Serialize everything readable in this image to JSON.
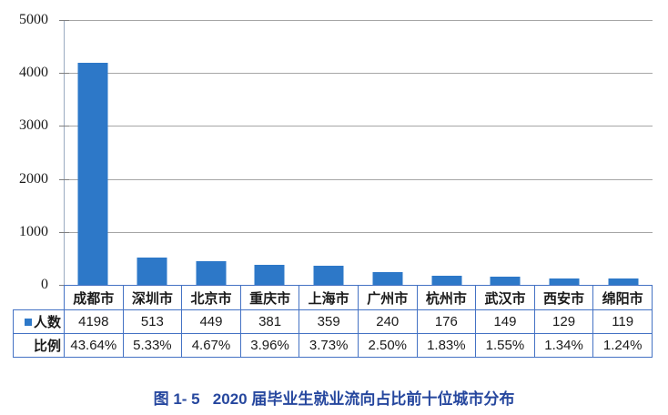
{
  "caption": "图 1- 5   2020 届毕业生就业流向占比前十位城市分布",
  "chart_data": {
    "type": "bar",
    "title": "图 1- 5   2020 届毕业生就业流向占比前十位城市分布",
    "legend": "人数",
    "legend_position": "table-row-label",
    "categories": [
      "成都市",
      "深圳市",
      "北京市",
      "重庆市",
      "上海市",
      "广州市",
      "杭州市",
      "武汉市",
      "西安市",
      "绵阳市"
    ],
    "series": [
      {
        "name": "人数",
        "values": [
          4198,
          513,
          449,
          381,
          359,
          240,
          176,
          149,
          129,
          119
        ]
      },
      {
        "name": "比例",
        "values": [
          "43.64%",
          "5.33%",
          "4.67%",
          "3.96%",
          "3.73%",
          "2.50%",
          "1.83%",
          "1.55%",
          "1.34%",
          "1.24%"
        ]
      }
    ],
    "xlabel": "",
    "ylabel": "",
    "ylim": [
      0,
      5000
    ],
    "ytick_step": 1000,
    "grid": "horizontal",
    "bar_color": "#2d78c8",
    "gridline_color": "#a6a6a6",
    "table_border_color": "#4472c4",
    "title_color": "#26479e"
  },
  "yaxis": {
    "ticks": [
      "5000",
      "4000",
      "3000",
      "2000",
      "1000",
      "0"
    ]
  },
  "table": {
    "row_label_count": "人数",
    "row_label_percent": "比例",
    "cities": [
      "成都市",
      "深圳市",
      "北京市",
      "重庆市",
      "上海市",
      "广州市",
      "杭州市",
      "武汉市",
      "西安市",
      "绵阳市"
    ],
    "counts": [
      "4198",
      "513",
      "449",
      "381",
      "359",
      "240",
      "176",
      "149",
      "129",
      "119"
    ],
    "percents": [
      "43.64%",
      "5.33%",
      "4.67%",
      "3.96%",
      "3.73%",
      "2.50%",
      "1.83%",
      "1.55%",
      "1.34%",
      "1.24%"
    ]
  }
}
